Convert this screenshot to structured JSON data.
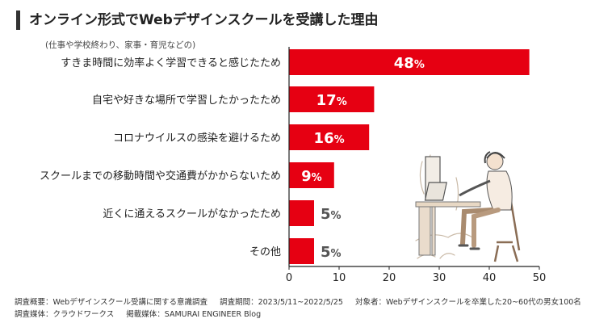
{
  "title": "オンライン形式でWebデザインスクールを受講した理由",
  "chart_data": {
    "type": "bar",
    "orientation": "horizontal",
    "categories": [
      "(仕事や学校終わり、家事・育児などの)\nすきま時間に効率よく学習できると感じたため",
      "自宅や好きな場所で学習したかったため",
      "コロナウイルスの感染を避けるため",
      "スクールまでの移動時間や交通費がかからないため",
      "近くに通えるスクールがなかったため",
      "その他"
    ],
    "values": [
      48,
      17,
      16,
      9,
      5,
      5
    ],
    "value_labels": [
      "48",
      "17",
      "16",
      "9",
      "5",
      "5"
    ],
    "unit": "%",
    "xlim": [
      0,
      50
    ],
    "xticks": [
      0,
      10,
      20,
      30,
      40,
      50
    ],
    "bar_color": "#e60012",
    "grid": false
  },
  "footer": {
    "line1": [
      "調査概要：Webデザインスクール受講に関する意識調査",
      "調査期間：2023/5/11~2022/5/25",
      "対象者：Webデザインスクールを卒業した20~60代の男女100名"
    ],
    "line2": [
      "調査媒体：クラウドワークス",
      "掲載媒体：SAMURAI ENGINEER Blog"
    ]
  }
}
